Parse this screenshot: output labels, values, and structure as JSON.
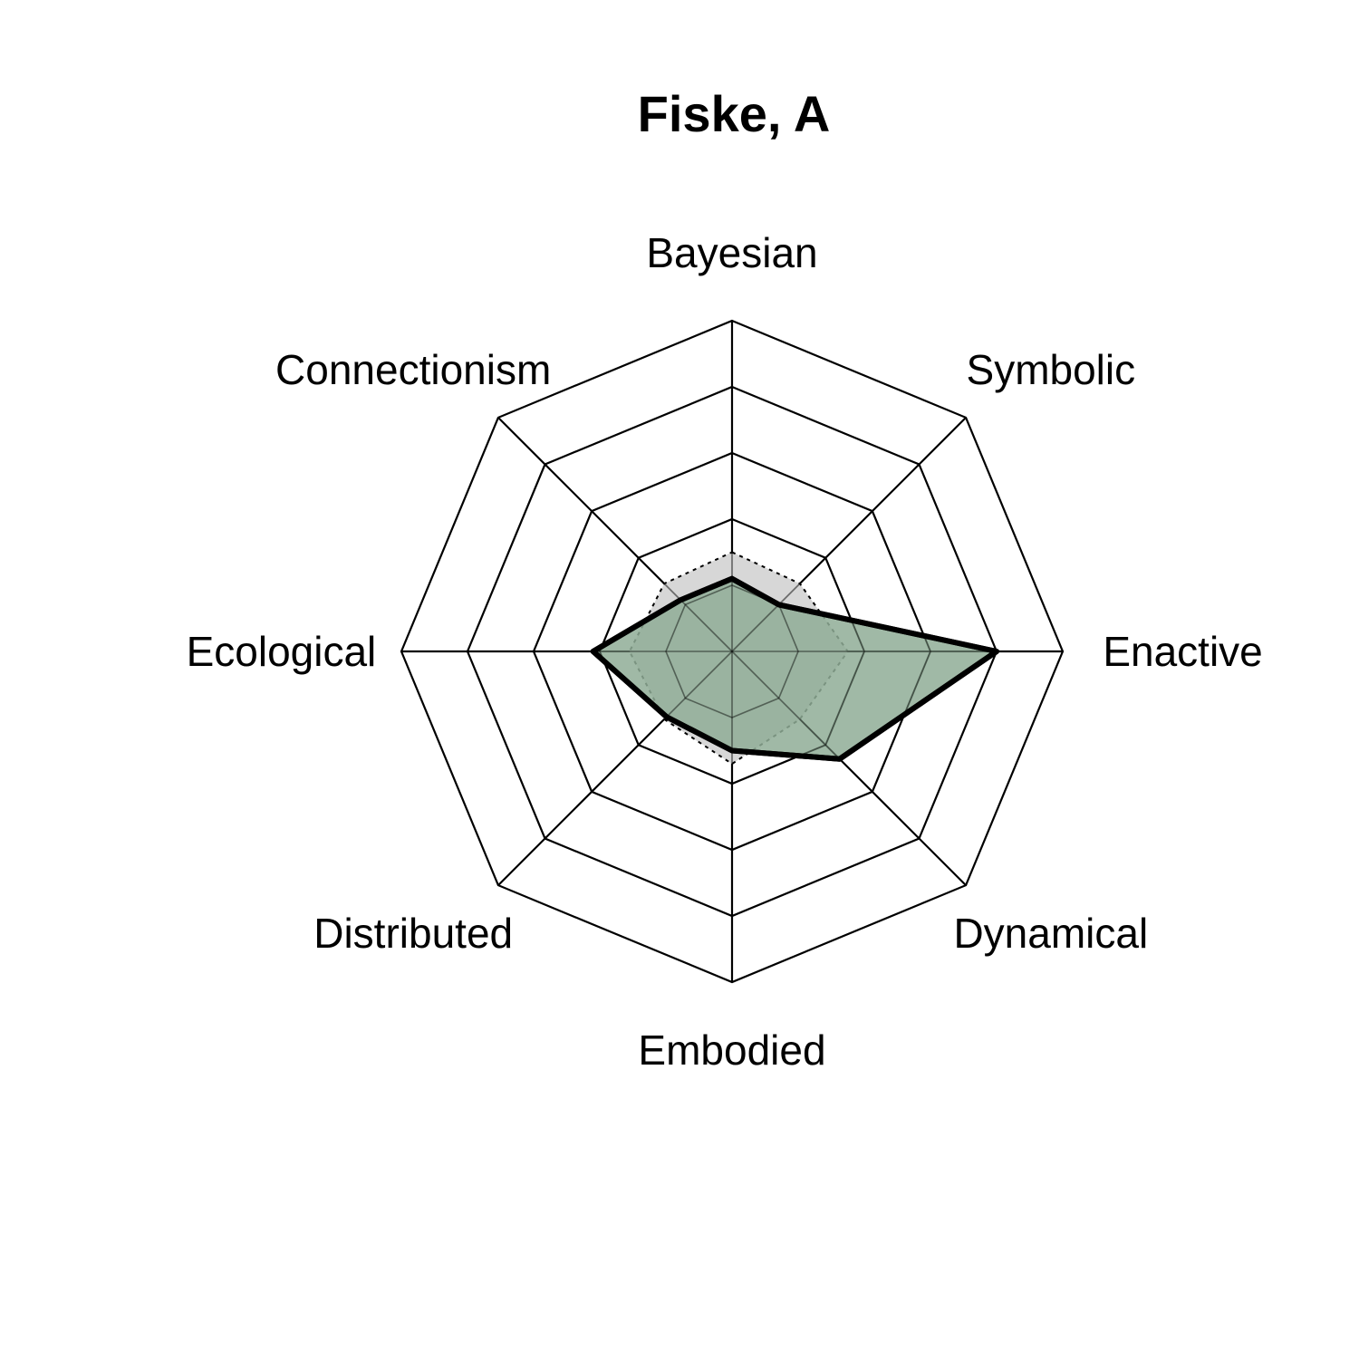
{
  "chart_data": {
    "type": "radar",
    "title": "Fiske, A",
    "axes": [
      "Bayesian",
      "Symbolic",
      "Enactive",
      "Dynamical",
      "Embodied",
      "Distributed",
      "Ecological",
      "Connectionism"
    ],
    "rlim": [
      0,
      5
    ],
    "grid_levels": 5,
    "series": [
      {
        "values": [
          1.1,
          1.0,
          4.0,
          2.3,
          1.5,
          1.4,
          2.1,
          1.1
        ],
        "fill": "#8fad97",
        "stroke": "#000000",
        "line_style": "solid"
      },
      {
        "values": [
          1.5,
          1.45,
          1.75,
          1.45,
          1.7,
          1.45,
          1.55,
          1.45
        ],
        "fill": "#d3d3d3",
        "stroke": "#000000",
        "line_style": "dotted"
      }
    ]
  }
}
